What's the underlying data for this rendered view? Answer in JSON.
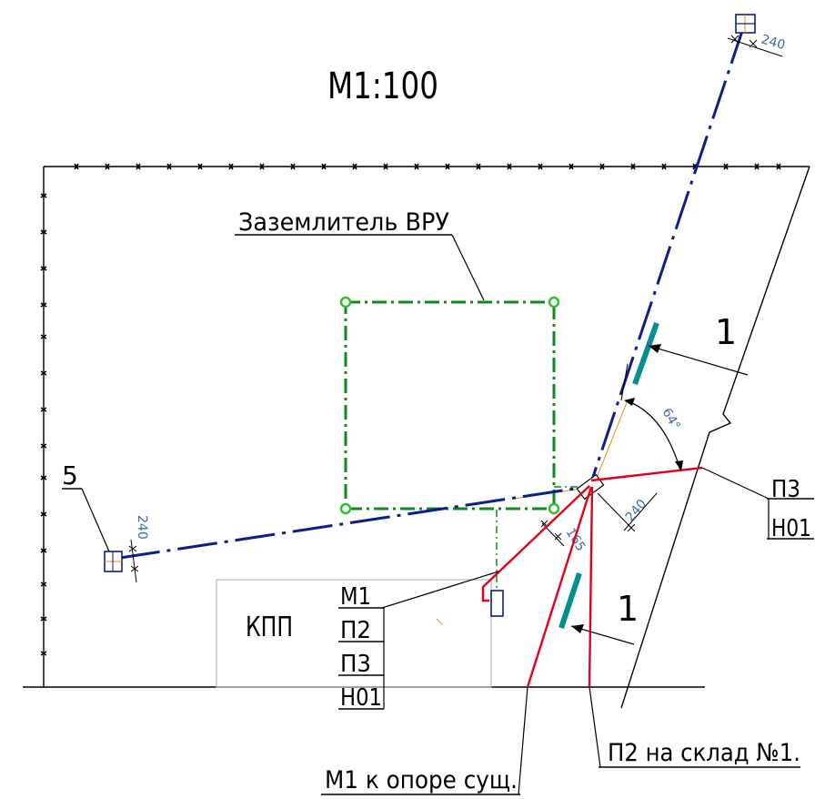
{
  "scale": "М1:100",
  "labels": {
    "grounding": "Заземлитель ВРУ",
    "checkpoint": "КПП",
    "callout_number": "5",
    "section_mark_top": "1",
    "section_mark_bottom": "1",
    "angle": "64°",
    "warehouse": "П2 на склад №1.",
    "pole": "М1 к опоре сущ."
  },
  "dims": {
    "top_right": "240",
    "left_pole": "240",
    "near_node": "240",
    "node_small": "165"
  },
  "stack_right": [
    "П3",
    "Н01"
  ],
  "stack_left": [
    "М1",
    "П2",
    "П3",
    "Н01"
  ],
  "colors": {
    "cable_blue": "#0a1e8c",
    "cable_red": "#e3001b",
    "grounding_green": "#0f8a1e",
    "teal_marker": "#00908e",
    "orange_aux": "#f08a00",
    "dim_blue": "#3a6ea5"
  }
}
